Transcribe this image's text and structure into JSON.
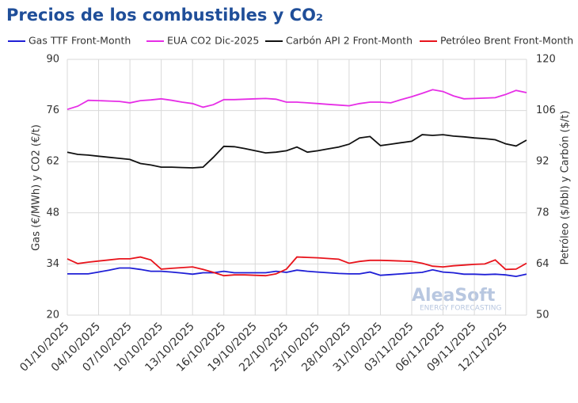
{
  "chart_data": {
    "type": "line",
    "title": "Precios de los combustibles y CO₂",
    "y_label": "Gas (€/MWh) y CO2 (€/t)",
    "y2_label": "Petróleo ($/bbl) y Carbón ($/t)",
    "watermark": "AleaSoft",
    "watermark_subtitle": "ENERGY FORECASTING",
    "categories": [
      "01/10/2025",
      null,
      null,
      "04/10/2025",
      null,
      null,
      "07/10/2025",
      null,
      null,
      "10/10/2025",
      null,
      null,
      "13/10/2025",
      null,
      null,
      "16/10/2025",
      null,
      null,
      "19/10/2025",
      null,
      null,
      "22/10/2025",
      null,
      null,
      "25/10/2025",
      null,
      null,
      "28/10/2025",
      null,
      null,
      "31/10/2025",
      null,
      null,
      "03/11/2025",
      null,
      null,
      "06/11/2025",
      null,
      null,
      "09/11/2025",
      null,
      null,
      "12/11/2025",
      null,
      null
    ],
    "ylim": [
      20,
      90
    ],
    "yticks": [
      20,
      34,
      48,
      62,
      76,
      90
    ],
    "y2lim": [
      50,
      120
    ],
    "y2ticks": [
      50,
      64,
      78,
      92,
      106,
      120
    ],
    "grid": true,
    "series": [
      {
        "name": "Gas TTF Front-Month",
        "color": "#1f1fd6",
        "values": [
          31.3,
          31.3,
          31.3,
          31.8,
          32.3,
          32.9,
          32.9,
          32.5,
          32.0,
          32.0,
          31.8,
          31.5,
          31.2,
          31.6,
          31.6,
          32.0,
          31.6,
          31.6,
          31.6,
          31.6,
          32.0,
          31.7,
          32.3,
          32.0,
          31.8,
          31.6,
          31.4,
          31.3,
          31.3,
          31.8,
          30.9,
          31.1,
          31.3,
          31.5,
          31.7,
          32.4,
          31.8,
          31.6,
          31.2,
          31.2,
          31.1,
          31.2,
          31.0,
          30.6,
          31.2
        ]
      },
      {
        "name": "EUA CO2 Dic-2025",
        "color": "#e62ee6",
        "values": [
          76.3,
          77.2,
          78.8,
          78.7,
          78.6,
          78.5,
          78.1,
          78.7,
          78.9,
          79.2,
          78.8,
          78.3,
          77.9,
          76.9,
          77.6,
          79.0,
          79.0,
          79.1,
          79.2,
          79.3,
          79.1,
          78.3,
          78.3,
          78.1,
          77.9,
          77.7,
          77.5,
          77.3,
          77.9,
          78.3,
          78.3,
          78.1,
          79.0,
          79.8,
          80.7,
          81.7,
          81.2,
          80.0,
          79.2,
          79.3,
          79.4,
          79.5,
          80.4,
          81.5,
          80.9
        ]
      },
      {
        "name": "Carbón API 2 Front-Month",
        "color": "#111111",
        "axis": "y2",
        "values": [
          94.6,
          94.0,
          93.8,
          93.5,
          93.2,
          92.9,
          92.6,
          91.5,
          91.1,
          90.5,
          90.5,
          90.4,
          90.3,
          90.5,
          93.2,
          96.2,
          96.1,
          95.6,
          95.0,
          94.4,
          94.6,
          95.0,
          96.0,
          94.6,
          95.0,
          95.5,
          96.0,
          96.8,
          98.5,
          98.9,
          96.4,
          96.8,
          97.2,
          97.6,
          99.4,
          99.2,
          99.4,
          99.0,
          98.8,
          98.5,
          98.3,
          98.0,
          96.9,
          96.3,
          97.9
        ]
      },
      {
        "name": "Petróleo Brent Front-Month",
        "color": "#e8141c",
        "axis": "y2",
        "values": [
          65.4,
          64.1,
          64.5,
          64.8,
          65.1,
          65.4,
          65.4,
          65.9,
          65.1,
          62.6,
          62.8,
          63.0,
          63.2,
          62.5,
          61.7,
          60.8,
          61.0,
          61.0,
          60.9,
          60.8,
          61.3,
          62.6,
          65.9,
          65.8,
          65.7,
          65.5,
          65.3,
          64.2,
          64.7,
          65.0,
          65.0,
          64.9,
          64.8,
          64.7,
          64.2,
          63.4,
          63.2,
          63.5,
          63.7,
          63.9,
          64.0,
          65.1,
          62.5,
          62.6,
          64.2
        ]
      }
    ]
  }
}
